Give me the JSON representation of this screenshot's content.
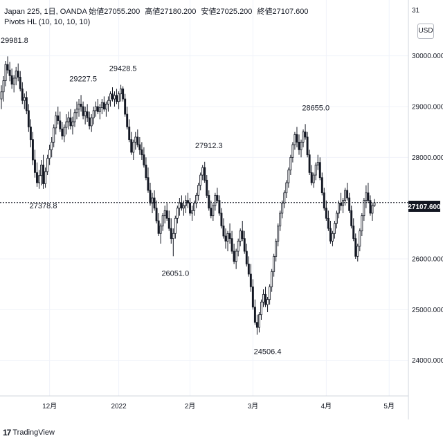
{
  "legend": {
    "line1": {
      "symbol": "Japan 225, 1日, OANDA",
      "open_label": "始値",
      "open_value": "27055.200",
      "high_label": "高値",
      "high_value": "27180.200",
      "low_label": "安値",
      "low_value": "27025.200",
      "close_label": "終値",
      "close_value": "27107.600"
    },
    "line2": "Pivots HL (10, 10, 10, 10)"
  },
  "currency_button": "USD",
  "price_badge": "27107.600",
  "partial_top_label": "31",
  "logo_text": "TradingView",
  "chart_data": {
    "type": "candlestick",
    "title": "",
    "ylim": [
      23300,
      31100
    ],
    "y_ticks": [
      {
        "label": "30000.000",
        "value": 30000
      },
      {
        "label": "29000.000",
        "value": 29000
      },
      {
        "label": "28000.000",
        "value": 28000
      },
      {
        "label": "26000.000",
        "value": 26000
      },
      {
        "label": "25000.000",
        "value": 25000
      },
      {
        "label": "24000.000",
        "value": 24000
      }
    ],
    "x_ticks": [
      {
        "label": "12月",
        "index": 23
      },
      {
        "label": "2022",
        "index": 56
      },
      {
        "label": "2月",
        "index": 90
      },
      {
        "label": "3月",
        "index": 120
      },
      {
        "label": "4月",
        "index": 155
      },
      {
        "label": "5月",
        "index": 185
      }
    ],
    "last_price": 27107.6,
    "pivots": [
      {
        "label": "29981.8",
        "index": 1,
        "value": 29981.8,
        "type": "high"
      },
      {
        "label": "29227.5",
        "index": 39,
        "value": 29227.5,
        "type": "high"
      },
      {
        "label": "29428.5",
        "index": 58,
        "value": 29428.5,
        "type": "high"
      },
      {
        "label": "27378.8",
        "index": 20,
        "value": 27378.8,
        "type": "low"
      },
      {
        "label": "27912.3",
        "index": 99,
        "value": 27912.3,
        "type": "high"
      },
      {
        "label": "26051.0",
        "index": 83,
        "value": 26051.0,
        "type": "low"
      },
      {
        "label": "28655.0",
        "index": 150,
        "value": 28655.0,
        "type": "high"
      },
      {
        "label": "24506.4",
        "index": 127,
        "value": 24506.4,
        "type": "low"
      }
    ],
    "candles": [
      [
        29150,
        29420,
        28950,
        29290
      ],
      [
        29290,
        29600,
        29100,
        29510
      ],
      [
        29510,
        29900,
        29400,
        29830
      ],
      [
        29830,
        29990,
        29650,
        29720
      ],
      [
        29720,
        29880,
        29500,
        29610
      ],
      [
        29610,
        29750,
        29350,
        29440
      ],
      [
        29440,
        29620,
        29280,
        29560
      ],
      [
        29560,
        29780,
        29420,
        29700
      ],
      [
        29700,
        29850,
        29500,
        29580
      ],
      [
        29580,
        29700,
        29300,
        29350
      ],
      [
        29350,
        29480,
        29050,
        29120
      ],
      [
        29120,
        29260,
        28950,
        29180
      ],
      [
        29180,
        29300,
        28850,
        28920
      ],
      [
        28920,
        29050,
        28500,
        28600
      ],
      [
        28600,
        28750,
        28200,
        28350
      ],
      [
        28350,
        28500,
        27850,
        27950
      ],
      [
        27950,
        28150,
        27600,
        27700
      ],
      [
        27700,
        27900,
        27420,
        27500
      ],
      [
        27500,
        27750,
        27380,
        27640
      ],
      [
        27640,
        27950,
        27450,
        27850
      ],
      [
        27850,
        28050,
        27379,
        27480
      ],
      [
        27480,
        27800,
        27400,
        27720
      ],
      [
        27720,
        28050,
        27650,
        27980
      ],
      [
        27980,
        28250,
        27850,
        28150
      ],
      [
        28150,
        28400,
        28000,
        28300
      ],
      [
        28300,
        28650,
        28200,
        28580
      ],
      [
        28580,
        28900,
        28450,
        28820
      ],
      [
        28820,
        29000,
        28650,
        28720
      ],
      [
        28720,
        28900,
        28500,
        28560
      ],
      [
        28560,
        28700,
        28350,
        28420
      ],
      [
        28420,
        28650,
        28300,
        28590
      ],
      [
        28590,
        28850,
        28450,
        28700
      ],
      [
        28700,
        28900,
        28550,
        28780
      ],
      [
        28780,
        28950,
        28550,
        28620
      ],
      [
        28620,
        28800,
        28450,
        28700
      ],
      [
        28700,
        28950,
        28600,
        28880
      ],
      [
        28880,
        29100,
        28750,
        28950
      ],
      [
        28950,
        29150,
        28800,
        29050
      ],
      [
        29050,
        29228,
        28900,
        29000
      ],
      [
        29000,
        29100,
        28750,
        28820
      ],
      [
        28820,
        29000,
        28650,
        28900
      ],
      [
        28900,
        29050,
        28700,
        28780
      ],
      [
        28780,
        28900,
        28550,
        28620
      ],
      [
        28620,
        28850,
        28500,
        28780
      ],
      [
        28780,
        29000,
        28650,
        28920
      ],
      [
        28920,
        29100,
        28800,
        29000
      ],
      [
        29000,
        29150,
        28850,
        28900
      ],
      [
        28900,
        29050,
        28750,
        28980
      ],
      [
        28980,
        29150,
        28850,
        29080
      ],
      [
        29080,
        29200,
        28900,
        28950
      ],
      [
        28950,
        29100,
        28800,
        29050
      ],
      [
        29050,
        29200,
        28900,
        29120
      ],
      [
        29120,
        29300,
        29000,
        29250
      ],
      [
        29250,
        29380,
        29100,
        29150
      ],
      [
        29150,
        29300,
        29000,
        29220
      ],
      [
        29220,
        29350,
        29050,
        29100
      ],
      [
        29100,
        29300,
        28950,
        29250
      ],
      [
        29250,
        29429,
        29100,
        29350
      ],
      [
        29350,
        29400,
        29100,
        29150
      ],
      [
        29150,
        29250,
        28800,
        28850
      ],
      [
        28850,
        29000,
        28550,
        28600
      ],
      [
        28600,
        28750,
        28300,
        28350
      ],
      [
        28350,
        28500,
        28050,
        28100
      ],
      [
        28100,
        28350,
        27950,
        28300
      ],
      [
        28300,
        28500,
        28150,
        28400
      ],
      [
        28400,
        28550,
        28200,
        28250
      ],
      [
        28250,
        28400,
        28050,
        28150
      ],
      [
        28150,
        28300,
        27950,
        28050
      ],
      [
        28050,
        28200,
        27800,
        27850
      ],
      [
        27850,
        28000,
        27550,
        27600
      ],
      [
        27600,
        27800,
        27300,
        27350
      ],
      [
        27350,
        27500,
        27050,
        27100
      ],
      [
        27100,
        27300,
        26900,
        27200
      ],
      [
        27200,
        27350,
        26950,
        27000
      ],
      [
        27000,
        27150,
        26700,
        26750
      ],
      [
        26750,
        26900,
        26450,
        26500
      ],
      [
        26500,
        26700,
        26300,
        26650
      ],
      [
        26650,
        26900,
        26550,
        26850
      ],
      [
        26850,
        27050,
        26700,
        26950
      ],
      [
        26950,
        27100,
        26750,
        26800
      ],
      [
        26800,
        26950,
        26550,
        26600
      ],
      [
        26600,
        26800,
        26300,
        26400
      ],
      [
        26400,
        26600,
        26051,
        26500
      ],
      [
        26500,
        26850,
        26400,
        26800
      ],
      [
        26800,
        27050,
        26700,
        27000
      ],
      [
        27000,
        27200,
        26850,
        27100
      ],
      [
        27100,
        27250,
        26950,
        27000
      ],
      [
        27000,
        27150,
        26850,
        27050
      ],
      [
        27050,
        27250,
        26900,
        27150
      ],
      [
        27150,
        27300,
        27000,
        27100
      ],
      [
        27100,
        27200,
        26850,
        26900
      ],
      [
        26900,
        27050,
        26750,
        26950
      ],
      [
        26950,
        27150,
        26850,
        27100
      ],
      [
        27100,
        27300,
        27000,
        27250
      ],
      [
        27250,
        27500,
        27150,
        27450
      ],
      [
        27450,
        27700,
        27350,
        27650
      ],
      [
        27650,
        27850,
        27550,
        27800
      ],
      [
        27800,
        27912,
        27500,
        27550
      ],
      [
        27550,
        27650,
        27200,
        27250
      ],
      [
        27250,
        27350,
        26950,
        27000
      ],
      [
        27000,
        27150,
        26800,
        26850
      ],
      [
        26850,
        27100,
        26750,
        27050
      ],
      [
        27050,
        27300,
        26950,
        27250
      ],
      [
        27250,
        27400,
        27100,
        27150
      ],
      [
        27150,
        27250,
        26850,
        26900
      ],
      [
        26900,
        27000,
        26600,
        26650
      ],
      [
        26650,
        26800,
        26400,
        26450
      ],
      [
        26450,
        26600,
        26200,
        26350
      ],
      [
        26350,
        26550,
        26150,
        26500
      ],
      [
        26500,
        26700,
        26300,
        26400
      ],
      [
        26400,
        26550,
        26100,
        26150
      ],
      [
        26150,
        26300,
        25900,
        25950
      ],
      [
        25950,
        26200,
        25800,
        26150
      ],
      [
        26150,
        26400,
        26050,
        26350
      ],
      [
        26350,
        26600,
        26250,
        26550
      ],
      [
        26550,
        26750,
        26350,
        26400
      ],
      [
        26400,
        26550,
        26100,
        26150
      ],
      [
        26150,
        26300,
        25850,
        25900
      ],
      [
        25900,
        26050,
        25650,
        25700
      ],
      [
        25700,
        25900,
        25350,
        25450
      ],
      [
        25450,
        25600,
        25000,
        25050
      ],
      [
        25050,
        25200,
        24700,
        24750
      ],
      [
        24750,
        24900,
        24506,
        24650
      ],
      [
        24650,
        24950,
        24550,
        24900
      ],
      [
        24900,
        25200,
        24800,
        25150
      ],
      [
        25150,
        25400,
        25050,
        25300
      ],
      [
        25300,
        25450,
        25050,
        25100
      ],
      [
        25100,
        25250,
        24950,
        25200
      ],
      [
        25200,
        25500,
        25100,
        25450
      ],
      [
        25450,
        25800,
        25350,
        25750
      ],
      [
        25750,
        26100,
        25650,
        26050
      ],
      [
        26050,
        26400,
        25950,
        26350
      ],
      [
        26350,
        26700,
        26250,
        26650
      ],
      [
        26650,
        26950,
        26550,
        26900
      ],
      [
        26900,
        27150,
        26800,
        27100
      ],
      [
        27100,
        27350,
        27000,
        27300
      ],
      [
        27300,
        27550,
        27200,
        27500
      ],
      [
        27500,
        27800,
        27400,
        27750
      ],
      [
        27750,
        28050,
        27650,
        28000
      ],
      [
        28000,
        28300,
        27900,
        28250
      ],
      [
        28250,
        28500,
        28150,
        28450
      ],
      [
        28450,
        28600,
        28200,
        28300
      ],
      [
        28300,
        28450,
        28050,
        28150
      ],
      [
        28150,
        28350,
        28000,
        28300
      ],
      [
        28300,
        28550,
        28200,
        28500
      ],
      [
        28500,
        28655,
        28350,
        28400
      ],
      [
        28400,
        28500,
        28000,
        28050
      ],
      [
        28050,
        28150,
        27650,
        27700
      ],
      [
        27700,
        27850,
        27450,
        27500
      ],
      [
        27500,
        27700,
        27400,
        27650
      ],
      [
        27650,
        27900,
        27550,
        27850
      ],
      [
        27850,
        28050,
        27750,
        27900
      ],
      [
        27900,
        28000,
        27550,
        27600
      ],
      [
        27600,
        27700,
        27250,
        27300
      ],
      [
        27300,
        27400,
        26950,
        27000
      ],
      [
        27000,
        27150,
        26750,
        26800
      ],
      [
        26800,
        26950,
        26550,
        26600
      ],
      [
        26600,
        26750,
        26300,
        26350
      ],
      [
        26350,
        26550,
        26250,
        26500
      ],
      [
        26500,
        26750,
        26400,
        26700
      ],
      [
        26700,
        26950,
        26600,
        26900
      ],
      [
        26900,
        27150,
        26800,
        27100
      ],
      [
        27100,
        27300,
        26950,
        27050
      ],
      [
        27050,
        27200,
        26900,
        27150
      ],
      [
        27150,
        27400,
        27050,
        27350
      ],
      [
        27350,
        27500,
        27150,
        27200
      ],
      [
        27200,
        27300,
        26900,
        26950
      ],
      [
        26950,
        27050,
        26600,
        26650
      ],
      [
        26650,
        26800,
        26350,
        26400
      ],
      [
        26400,
        26500,
        26000,
        26050
      ],
      [
        26050,
        26300,
        25950,
        26250
      ],
      [
        26250,
        26600,
        26150,
        26550
      ],
      [
        26550,
        26900,
        26450,
        26850
      ],
      [
        26850,
        27200,
        26750,
        27150
      ],
      [
        27150,
        27450,
        27000,
        27300
      ],
      [
        27300,
        27500,
        27100,
        27150
      ],
      [
        27150,
        27250,
        26850,
        26900
      ],
      [
        26900,
        27100,
        26750,
        27050
      ],
      [
        27050,
        27180,
        27025,
        27107.6
      ]
    ]
  }
}
